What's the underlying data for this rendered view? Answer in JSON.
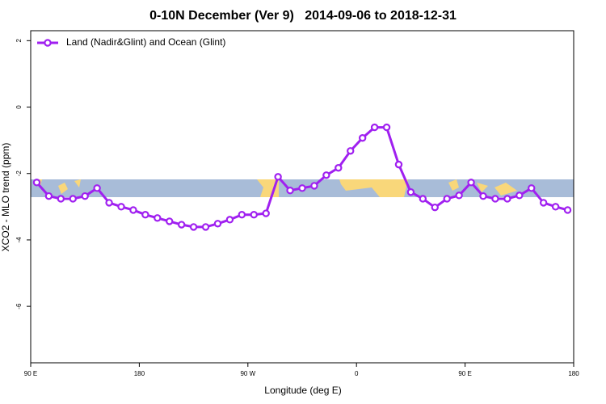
{
  "chart_data": {
    "type": "line",
    "title": "0-10N December (Ver 9)   2014-09-06 to 2018-12-31",
    "x_label": "Longitude (deg E)",
    "y_label": "XCO2 - MLO trend (ppm)",
    "x": [
      95,
      105,
      115,
      125,
      135,
      145,
      155,
      165,
      175,
      185,
      195,
      205,
      215,
      225,
      235,
      245,
      255,
      265,
      275,
      285,
      295,
      305,
      315,
      325,
      335,
      345,
      355,
      365,
      375,
      385,
      395,
      405,
      415,
      425,
      435,
      445,
      455,
      465,
      475,
      485,
      495,
      505,
      515,
      525,
      535
    ],
    "series": [
      {
        "name": "Land (Nadir&Glint) and Ocean (Glint)",
        "color": "#a020f0",
        "values": [
          -2.27,
          -2.68,
          -2.76,
          -2.76,
          -2.68,
          -2.44,
          -2.88,
          -3.0,
          -3.1,
          -3.24,
          -3.34,
          -3.44,
          -3.54,
          -3.61,
          -3.61,
          -3.51,
          -3.39,
          -3.24,
          -3.24,
          -3.2,
          -2.1,
          -2.51,
          -2.44,
          -2.37,
          -2.05,
          -1.83,
          -1.32,
          -0.93,
          -0.61,
          -0.61,
          -1.73,
          -2.56,
          -2.76,
          -3.02,
          -2.76,
          -2.66,
          -2.27,
          -2.68,
          -2.76,
          -2.76,
          -2.66,
          -2.44,
          -2.88,
          -3.0,
          -3.1
        ]
      }
    ],
    "xlim": [
      90,
      540
    ],
    "xticks": [
      {
        "value": 90,
        "label": "90 E"
      },
      180,
      {
        "value": 270,
        "label": "90 W"
      },
      {
        "value": 360,
        "label": "0"
      },
      {
        "value": 450,
        "label": "90 E"
      },
      {
        "value": 540,
        "label": "180"
      }
    ],
    "ylim": [
      -7.7,
      2.3
    ],
    "yticks": [
      2,
      0,
      -2,
      -4,
      -6
    ],
    "legend": "top-left"
  }
}
